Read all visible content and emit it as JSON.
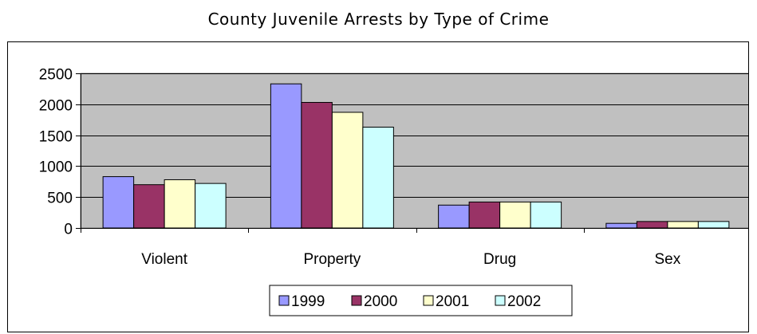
{
  "chart_data": {
    "type": "bar",
    "title": "County Juvenile Arrests by Type of Crime",
    "xlabel": "",
    "ylabel": "",
    "categories": [
      "Violent",
      "Property",
      "Drug",
      "Sex"
    ],
    "series": [
      {
        "name": "1999",
        "values": [
          830,
          2330,
          370,
          75
        ],
        "color": "#9999FF"
      },
      {
        "name": "2000",
        "values": [
          700,
          2030,
          420,
          105
        ],
        "color": "#993366"
      },
      {
        "name": "2001",
        "values": [
          780,
          1870,
          420,
          105
        ],
        "color": "#FFFFCC"
      },
      {
        "name": "2002",
        "values": [
          720,
          1630,
          420,
          105
        ],
        "color": "#CCFFFF"
      }
    ],
    "ylim": [
      0,
      2500
    ],
    "yticks": [
      0,
      500,
      1000,
      1500,
      2000,
      2500
    ],
    "grid": true,
    "legend": "bottom",
    "plot_background": "#C0C0C0"
  }
}
